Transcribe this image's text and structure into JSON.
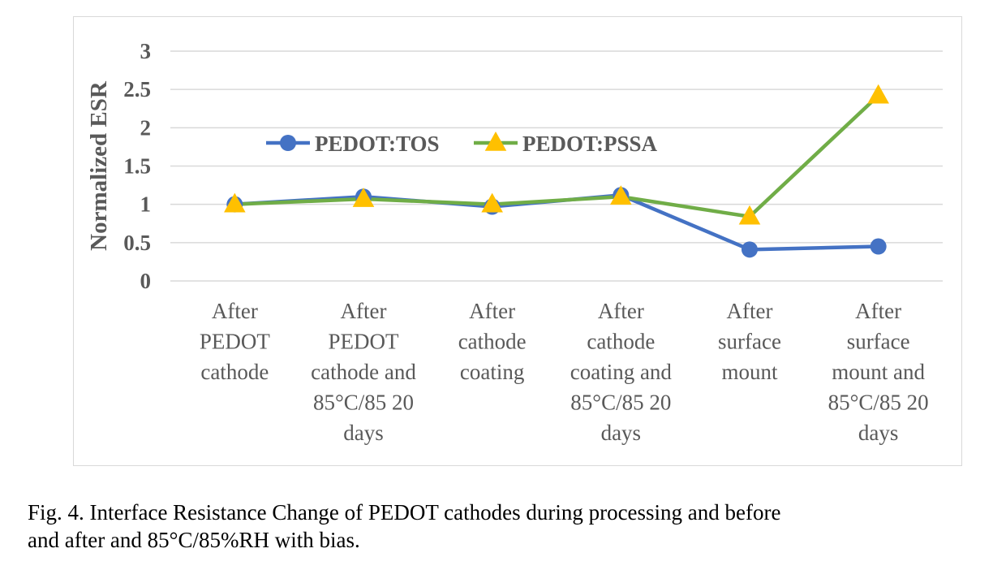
{
  "chart_data": {
    "type": "line",
    "ylabel": "Normalized ESR",
    "ylim": [
      0,
      3
    ],
    "yticks": [
      "0",
      "0.5",
      "1",
      "1.5",
      "2",
      "2.5",
      "3"
    ],
    "grid": true,
    "legend_position": "upper-left",
    "categories": [
      [
        "After",
        "PEDOT",
        "cathode"
      ],
      [
        "After",
        "PEDOT",
        "cathode and",
        "85°C/85 20",
        "days"
      ],
      [
        "After",
        "cathode",
        "coating"
      ],
      [
        "After",
        "cathode",
        "coating and",
        "85°C/85 20",
        "days"
      ],
      [
        "After",
        "surface",
        "mount"
      ],
      [
        "After",
        "surface",
        "mount and",
        "85°C/85 20",
        "days"
      ]
    ],
    "series": [
      {
        "name": "PEDOT:TOS",
        "values": [
          1.0,
          1.1,
          0.97,
          1.12,
          0.41,
          0.45
        ],
        "color": "#4472c4",
        "marker": "circle"
      },
      {
        "name": "PEDOT:PSSA",
        "values": [
          1.0,
          1.07,
          1.0,
          1.1,
          0.84,
          2.42
        ],
        "color": "#70ad47",
        "marker": "triangle",
        "marker_color": "#ffc000"
      }
    ]
  },
  "caption": {
    "line1": "Fig. 4. Interface Resistance Change of PEDOT cathodes during processing and before",
    "line2": "and after and 85°C/85%RH with bias."
  }
}
